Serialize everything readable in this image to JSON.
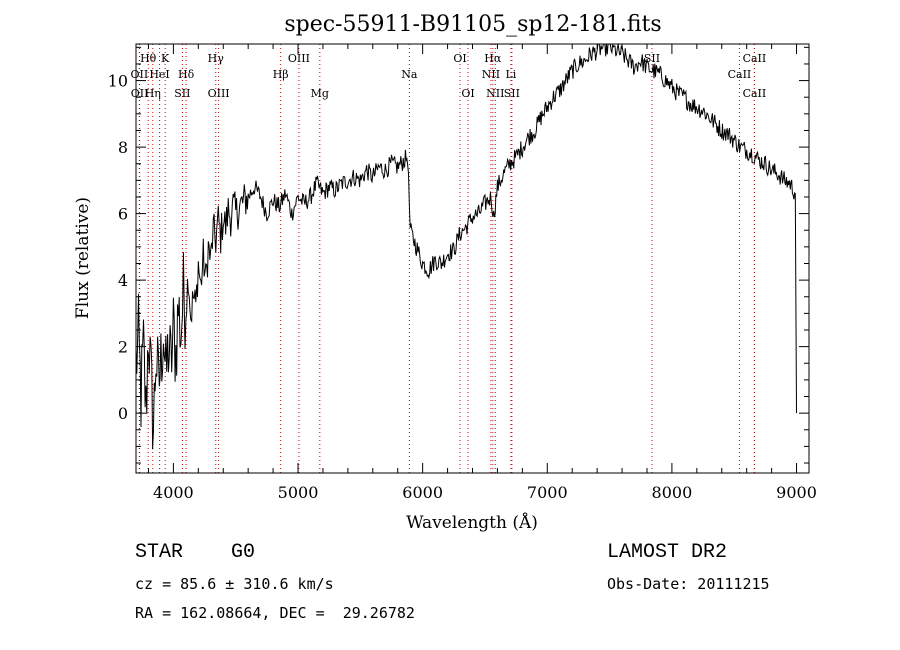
{
  "chart_data": {
    "type": "line",
    "title": "spec-55911-B91105_sp12-181.fits",
    "xlabel": "Wavelength (Å)",
    "ylabel": "Flux (relative)",
    "xlim": [
      3700,
      9100
    ],
    "ylim": [
      -1.8,
      11.1
    ],
    "xticks": [
      4000,
      5000,
      6000,
      7000,
      8000,
      9000
    ],
    "yticks": [
      0,
      2,
      4,
      6,
      8,
      10
    ],
    "grid": false,
    "legend": "none",
    "series": [
      {
        "x": [
          3700,
          3720,
          3740,
          3760,
          3780,
          3800,
          3820,
          3840,
          3860,
          3880,
          3900,
          3920,
          3940,
          3960,
          3980,
          4000,
          4020,
          4040,
          4060,
          4080,
          4100,
          4120,
          4140,
          4160,
          4180,
          4200,
          4220,
          4240,
          4260,
          4280,
          4300,
          4320,
          4340,
          4360,
          4380,
          4400,
          4420,
          4440,
          4460,
          4480,
          4500,
          4550,
          4600,
          4650,
          4700,
          4750,
          4800,
          4850,
          4900,
          4950,
          5000,
          5050,
          5100,
          5150,
          5200,
          5250,
          5300,
          5350,
          5400,
          5450,
          5500,
          5550,
          5600,
          5650,
          5700,
          5750,
          5800,
          5850,
          5880,
          5900,
          5920,
          5950,
          6000,
          6050,
          6100,
          6150,
          6200,
          6250,
          6300,
          6350,
          6400,
          6450,
          6500,
          6550,
          6570,
          6600,
          6650,
          6700,
          6750,
          6800,
          6850,
          6900,
          6950,
          7000,
          7050,
          7100,
          7150,
          7200,
          7250,
          7300,
          7350,
          7400,
          7450,
          7500,
          7550,
          7600,
          7650,
          7700,
          7750,
          7800,
          7850,
          7900,
          7950,
          8000,
          8050,
          8100,
          8150,
          8200,
          8250,
          8300,
          8350,
          8400,
          8450,
          8500,
          8550,
          8600,
          8650,
          8700,
          8750,
          8800,
          8850,
          8900,
          8950,
          8990,
          9000
        ],
        "y": [
          1.5,
          2.2,
          0.5,
          1.9,
          0.0,
          2.5,
          1.0,
          -0.5,
          1.8,
          0.8,
          1.5,
          2.6,
          1.0,
          2.0,
          1.4,
          2.5,
          1.8,
          3.2,
          2.4,
          3.6,
          3.1,
          4.2,
          2.9,
          3.5,
          3.2,
          4.5,
          3.8,
          4.7,
          4.0,
          5.0,
          4.6,
          5.5,
          5.2,
          5.8,
          5.3,
          5.9,
          5.6,
          6.1,
          5.9,
          6.2,
          6.0,
          6.3,
          6.5,
          6.8,
          6.5,
          6.0,
          6.4,
          6.2,
          6.6,
          6.0,
          6.5,
          6.3,
          6.5,
          6.9,
          6.6,
          6.8,
          6.7,
          6.9,
          7.0,
          7.1,
          7.0,
          7.3,
          7.1,
          7.4,
          7.3,
          7.5,
          7.4,
          7.6,
          7.7,
          5.5,
          5.3,
          5.0,
          4.5,
          4.3,
          4.6,
          4.5,
          4.8,
          4.9,
          5.4,
          5.6,
          5.9,
          6.0,
          6.3,
          6.5,
          5.9,
          6.8,
          7.2,
          7.5,
          7.7,
          8.0,
          8.3,
          8.5,
          8.9,
          9.2,
          9.5,
          9.7,
          10.0,
          10.3,
          10.5,
          10.6,
          10.8,
          10.9,
          11.0,
          11.0,
          10.9,
          10.8,
          10.6,
          10.4,
          10.6,
          10.4,
          10.3,
          10.2,
          10.0,
          9.8,
          9.6,
          9.5,
          9.3,
          9.2,
          9.1,
          8.9,
          8.7,
          8.5,
          8.4,
          8.2,
          8.0,
          7.9,
          7.8,
          7.6,
          7.5,
          7.3,
          7.2,
          7.0,
          6.9,
          6.6,
          0.0
        ]
      }
    ],
    "lines": [
      {
        "label": "Hθ",
        "x": 3798,
        "row": 1
      },
      {
        "label": "K",
        "x": 3934,
        "row": 1
      },
      {
        "label": "OII",
        "x": 3727,
        "row": 2
      },
      {
        "label": "HeI",
        "x": 3889,
        "row": 2
      },
      {
        "label": "Hδ",
        "x": 4102,
        "row": 2
      },
      {
        "label": "OII",
        "x": 3729,
        "row": 3
      },
      {
        "label": "Hη",
        "x": 3835,
        "row": 3
      },
      {
        "label": "SII",
        "x": 4072,
        "row": 3
      },
      {
        "label": "Hγ",
        "x": 4340,
        "row": 1
      },
      {
        "label": "OIII",
        "x": 4363,
        "row": 3
      },
      {
        "label": "OIII",
        "x": 5007,
        "row": 1
      },
      {
        "label": "Hβ",
        "x": 4861,
        "row": 2
      },
      {
        "label": "Mg",
        "x": 5175,
        "row": 3
      },
      {
        "label": "Na",
        "x": 5893,
        "row": 2
      },
      {
        "label": "OI",
        "x": 6300,
        "row": 1
      },
      {
        "label": "OI",
        "x": 6364,
        "row": 3
      },
      {
        "label": "Hα",
        "x": 6563,
        "row": 1
      },
      {
        "label": "NII",
        "x": 6548,
        "row": 2
      },
      {
        "label": "Li",
        "x": 6708,
        "row": 2
      },
      {
        "label": "NII",
        "x": 6583,
        "row": 3
      },
      {
        "label": "SII",
        "x": 6716,
        "row": 3
      },
      {
        "label": "SII",
        "x": 7840,
        "row": 1
      },
      {
        "label": "CaII",
        "x": 8662,
        "row": 1
      },
      {
        "label": "CaII",
        "x": 8542,
        "row": 2
      },
      {
        "label": "CaII",
        "x": 8662,
        "row": 3
      }
    ]
  },
  "info": {
    "class": "STAR    G0",
    "survey": "LAMOST DR2",
    "cz": "cz = 85.6 ± 310.6 km/s",
    "obs_date": "Obs-Date: 20111215",
    "coords": "RA = 162.08664, DEC =  29.26782"
  }
}
